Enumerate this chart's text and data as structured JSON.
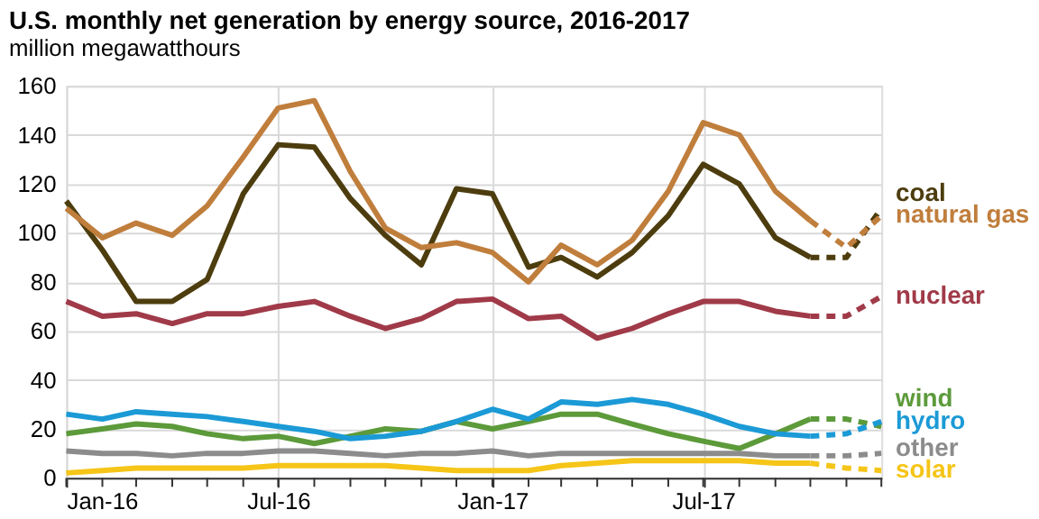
{
  "chart_data": {
    "type": "line",
    "title": "U.S. monthly net generation by energy source, 2016-2017",
    "subtitle": "million megawatthours",
    "x": [
      "2016-01",
      "2016-02",
      "2016-03",
      "2016-04",
      "2016-05",
      "2016-06",
      "2016-07",
      "2016-08",
      "2016-09",
      "2016-10",
      "2016-11",
      "2016-12",
      "2017-01",
      "2017-02",
      "2017-03",
      "2017-04",
      "2017-05",
      "2017-06",
      "2017-07",
      "2017-08",
      "2017-09",
      "2017-10"
    ],
    "xlim": [
      "2016-01",
      "2017-12"
    ],
    "xticks": [
      {
        "value": "2016-01",
        "label": "Jan-16"
      },
      {
        "value": "2016-02",
        "label": null
      },
      {
        "value": "2016-03",
        "label": null
      },
      {
        "value": "2016-04",
        "label": null
      },
      {
        "value": "2016-05",
        "label": null
      },
      {
        "value": "2016-06",
        "label": null
      },
      {
        "value": "2016-07",
        "label": "Jul-16"
      },
      {
        "value": "2016-08",
        "label": null
      },
      {
        "value": "2016-09",
        "label": null
      },
      {
        "value": "2016-10",
        "label": null
      },
      {
        "value": "2016-11",
        "label": null
      },
      {
        "value": "2016-12",
        "label": null
      },
      {
        "value": "2017-01",
        "label": "Jan-17"
      },
      {
        "value": "2017-02",
        "label": null
      },
      {
        "value": "2017-03",
        "label": null
      },
      {
        "value": "2017-04",
        "label": null
      },
      {
        "value": "2017-05",
        "label": null
      },
      {
        "value": "2017-06",
        "label": null
      },
      {
        "value": "2017-07",
        "label": "Jul-17"
      },
      {
        "value": "2017-08",
        "label": null
      },
      {
        "value": "2017-09",
        "label": null
      },
      {
        "value": "2017-10",
        "label": null
      },
      {
        "value": "2017-11",
        "label": null
      },
      {
        "value": "2017-12",
        "label": null
      }
    ],
    "ylim": [
      0,
      160
    ],
    "yticks": [
      0,
      20,
      40,
      60,
      80,
      100,
      120,
      140,
      160
    ],
    "grid": true,
    "legend": false,
    "line_style": "solid",
    "series": [
      {
        "name": "coal",
        "color": "#4d3d0e",
        "values": [
          113,
          93,
          72,
          72,
          81,
          116,
          136,
          135,
          114,
          99,
          87,
          118,
          116,
          86,
          90,
          82,
          92,
          107,
          128,
          120,
          98,
          90
        ]
      },
      {
        "name": "natural gas",
        "color": "#c07e3c",
        "values": [
          110,
          98,
          104,
          99,
          111,
          131,
          151,
          154,
          125,
          102,
          94,
          96,
          92,
          80,
          95,
          87,
          97,
          117,
          145,
          140,
          117,
          105
        ]
      },
      {
        "name": "nuclear",
        "color": "#a03a48",
        "values": [
          72,
          66,
          67,
          63,
          67,
          67,
          70,
          72,
          66,
          61,
          65,
          72,
          73,
          65,
          66,
          57,
          61,
          67,
          72,
          72,
          68,
          66
        ]
      },
      {
        "name": "wind",
        "color": "#5c9a3a",
        "values": [
          18,
          20,
          22,
          21,
          18,
          16,
          17,
          14,
          17,
          20,
          19,
          23,
          20,
          23,
          26,
          26,
          22,
          18,
          15,
          12,
          18,
          24
        ]
      },
      {
        "name": "hydro",
        "color": "#1b9ad6",
        "values": [
          26,
          24,
          27,
          26,
          25,
          23,
          21,
          19,
          16,
          17,
          19,
          23,
          28,
          24,
          31,
          30,
          32,
          30,
          26,
          21,
          18,
          17
        ]
      },
      {
        "name": "other",
        "color": "#8c8c8c",
        "values": [
          11,
          10,
          10,
          9,
          10,
          10,
          11,
          11,
          10,
          9,
          10,
          10,
          11,
          9,
          10,
          10,
          10,
          10,
          10,
          10,
          9,
          9
        ]
      },
      {
        "name": "solar",
        "color": "#f5c518",
        "values": [
          2,
          3,
          4,
          4,
          4,
          4,
          5,
          5,
          5,
          5,
          4,
          3,
          3,
          3,
          5,
          6,
          7,
          7,
          7,
          7,
          6,
          6
        ]
      },
      {
        "color": "#4d3d0e",
        "line_style": "dashed",
        "x": [
          "2017-10",
          "2017-11",
          "2017-12"
        ],
        "values": [
          90,
          90,
          110
        ]
      },
      {
        "color": "#c07e3c",
        "line_style": "dashed",
        "x": [
          "2017-10",
          "2017-11",
          "2017-12"
        ],
        "values": [
          105,
          94,
          107
        ]
      },
      {
        "color": "#a03a48",
        "line_style": "dashed",
        "x": [
          "2017-10",
          "2017-11",
          "2017-12"
        ],
        "values": [
          66,
          66,
          74
        ]
      },
      {
        "color": "#5c9a3a",
        "line_style": "dashed",
        "x": [
          "2017-10",
          "2017-11",
          "2017-12"
        ],
        "values": [
          24,
          24,
          21
        ]
      },
      {
        "color": "#1b9ad6",
        "line_style": "dashed",
        "x": [
          "2017-10",
          "2017-11",
          "2017-12"
        ],
        "values": [
          17,
          18,
          23
        ]
      },
      {
        "color": "#8c8c8c",
        "line_style": "dashed",
        "x": [
          "2017-10",
          "2017-11",
          "2017-12"
        ],
        "values": [
          9,
          9,
          10
        ]
      },
      {
        "color": "#f5c518",
        "line_style": "dashed",
        "x": [
          "2017-10",
          "2017-11",
          "2017-12"
        ],
        "values": [
          6,
          4,
          3
        ]
      }
    ]
  }
}
